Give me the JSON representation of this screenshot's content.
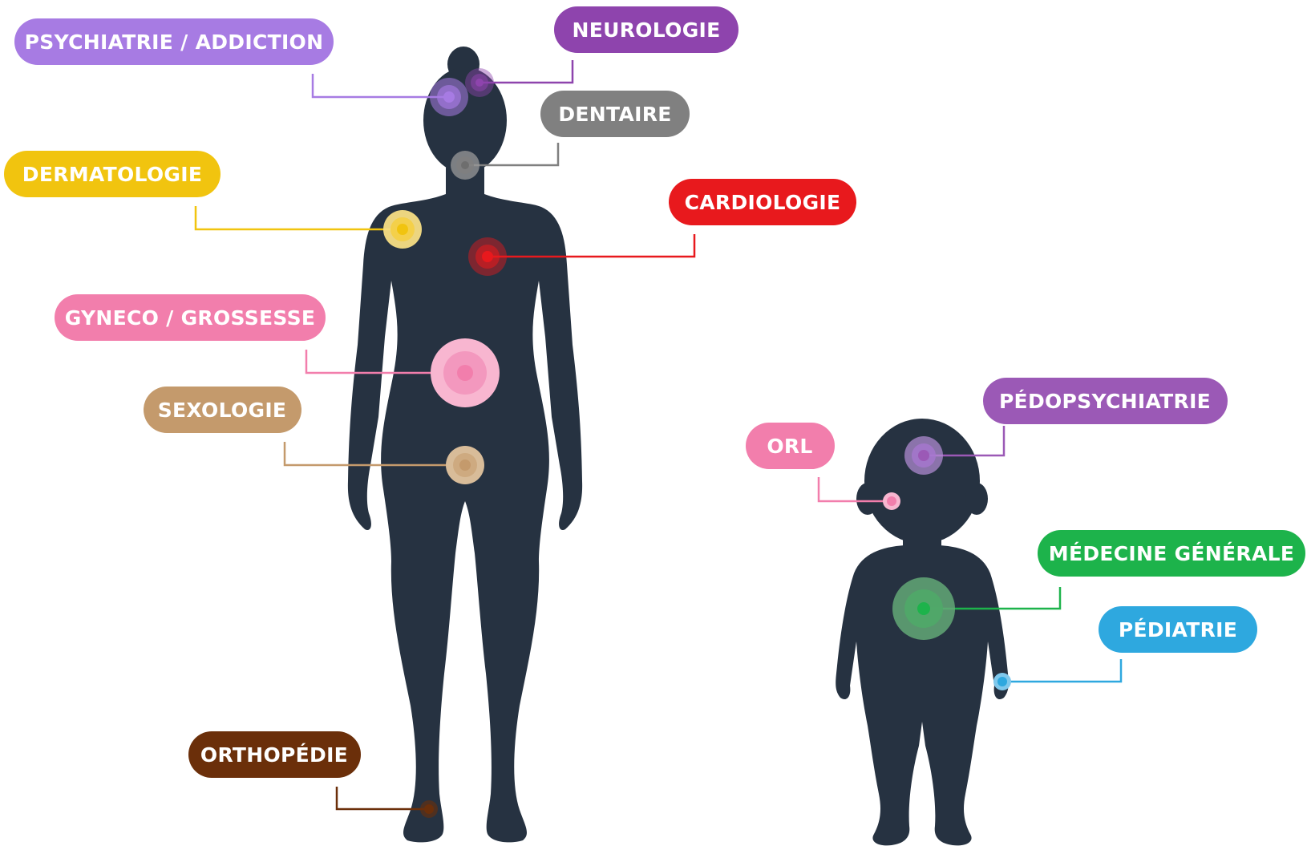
{
  "colors": {
    "silhouette": "#263241",
    "psychiatrie": "#A77BE3",
    "neurologie": "#8E44AD",
    "dentaire": "#808080",
    "dermatologie": "#F1C40F",
    "cardiologie": "#E8191D",
    "gyneco": "#F27EAC",
    "sexologie": "#C49A6C",
    "orthopedie": "#6B2F0A",
    "pedopsychiatrie": "#9B59B6",
    "orl": "#F27EAC",
    "medecine_generale": "#1DB34B",
    "pediatrie": "#2EA8DF"
  },
  "specialties": [
    {
      "key": "psychiatrie",
      "label": "PSYCHIATRIE / ADDICTION",
      "figure": "adult",
      "body_part": "head"
    },
    {
      "key": "neurologie",
      "label": "NEUROLOGIE",
      "figure": "adult",
      "body_part": "head"
    },
    {
      "key": "dentaire",
      "label": "DENTAIRE",
      "figure": "adult",
      "body_part": "mouth"
    },
    {
      "key": "dermatologie",
      "label": "DERMATOLOGIE",
      "figure": "adult",
      "body_part": "shoulder"
    },
    {
      "key": "cardiologie",
      "label": "CARDIOLOGIE",
      "figure": "adult",
      "body_part": "heart"
    },
    {
      "key": "gyneco",
      "label": "GYNECO / GROSSESSE",
      "figure": "adult",
      "body_part": "abdomen"
    },
    {
      "key": "sexologie",
      "label": "SEXOLOGIE",
      "figure": "adult",
      "body_part": "pelvis"
    },
    {
      "key": "orthopedie",
      "label": "ORTHOPÉDIE",
      "figure": "adult",
      "body_part": "ankle"
    },
    {
      "key": "pedopsychiatrie",
      "label": "PÉDOPSYCHIATRIE",
      "figure": "child",
      "body_part": "head"
    },
    {
      "key": "orl",
      "label": "ORL",
      "figure": "child",
      "body_part": "ear"
    },
    {
      "key": "medecine_generale",
      "label": "MÉDECINE GÉNÉRALE",
      "figure": "child",
      "body_part": "torso"
    },
    {
      "key": "pediatrie",
      "label": "PÉDIATRIE",
      "figure": "child",
      "body_part": "hand"
    }
  ]
}
